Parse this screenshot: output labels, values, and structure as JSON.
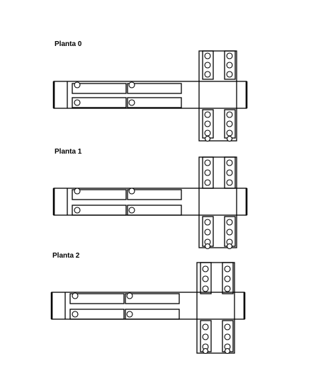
{
  "floors": [
    {
      "label": "Planta 0"
    },
    {
      "label": "Planta 1"
    },
    {
      "label": "Planta 2"
    }
  ],
  "colors": {
    "line": "#000000",
    "background": "#ffffff"
  }
}
